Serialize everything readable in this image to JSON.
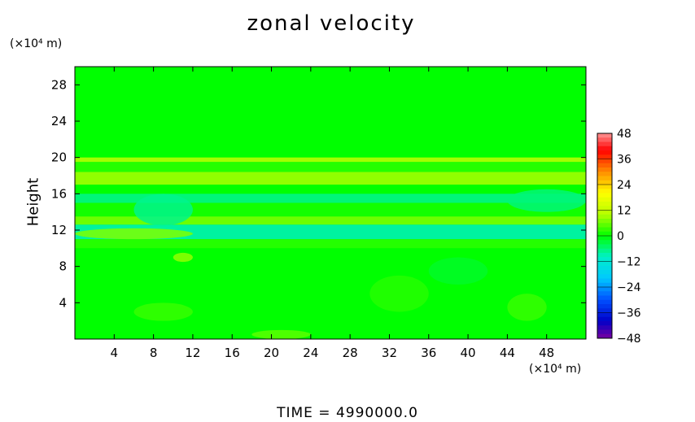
{
  "chart_data": {
    "type": "heatmap",
    "title": "zonal velocity",
    "ylabel": "Height",
    "x_unit_label": "(×10⁴ m)",
    "y_unit_label": "(×10⁴ m)",
    "footer": "TIME = 4990000.0",
    "xlim": [
      0,
      52
    ],
    "ylim": [
      0,
      30
    ],
    "x_ticks": [
      4,
      8,
      12,
      16,
      20,
      24,
      28,
      32,
      36,
      40,
      44,
      48
    ],
    "y_ticks": [
      4,
      8,
      12,
      16,
      20,
      24,
      28
    ],
    "colorbar": {
      "range": [
        -48,
        48
      ],
      "ticks": [
        48,
        36,
        24,
        12,
        0,
        -12,
        -24,
        -36,
        -48
      ],
      "tick_labels": [
        "48",
        "36",
        "24",
        "12",
        "0",
        "−12",
        "−24",
        "−36",
        "−48"
      ]
    },
    "bands": [
      {
        "y_range": [
          20.0,
          30.0
        ],
        "value": 0
      },
      {
        "y_range": [
          19.5,
          20.0
        ],
        "value": 9
      },
      {
        "y_range": [
          18.4,
          19.5
        ],
        "value": 2
      },
      {
        "y_range": [
          17.0,
          18.4
        ],
        "value": 8
      },
      {
        "y_range": [
          16.0,
          17.0
        ],
        "value": 0
      },
      {
        "y_range": [
          15.0,
          16.0
        ],
        "value": -6
      },
      {
        "y_range": [
          13.5,
          15.0
        ],
        "value": 1
      },
      {
        "y_range": [
          12.6,
          13.5
        ],
        "value": 6
      },
      {
        "y_range": [
          11.0,
          12.6
        ],
        "value": -8
      },
      {
        "y_range": [
          10.0,
          11.0
        ],
        "value": 2
      },
      {
        "y_range": [
          0.0,
          10.0
        ],
        "value": 0
      }
    ],
    "patches": [
      {
        "x_range": [
          0,
          12
        ],
        "y_range": [
          11.0,
          12.2
        ],
        "value": 7
      },
      {
        "x_range": [
          6,
          12
        ],
        "y_range": [
          12.5,
          16.0
        ],
        "value": -7
      },
      {
        "x_range": [
          44,
          52
        ],
        "y_range": [
          14.0,
          16.5
        ],
        "value": -6
      },
      {
        "x_range": [
          10,
          12
        ],
        "y_range": [
          8.5,
          9.5
        ],
        "value": 8
      },
      {
        "x_range": [
          6,
          12
        ],
        "y_range": [
          2.0,
          4.0
        ],
        "value": 3
      },
      {
        "x_range": [
          30,
          36
        ],
        "y_range": [
          3.0,
          7.0
        ],
        "value": 2
      },
      {
        "x_range": [
          44,
          48
        ],
        "y_range": [
          2.0,
          5.0
        ],
        "value": 3
      },
      {
        "x_range": [
          18,
          24
        ],
        "y_range": [
          0.0,
          1.0
        ],
        "value": 5
      },
      {
        "x_range": [
          36,
          42
        ],
        "y_range": [
          6.0,
          9.0
        ],
        "value": -2
      }
    ]
  }
}
